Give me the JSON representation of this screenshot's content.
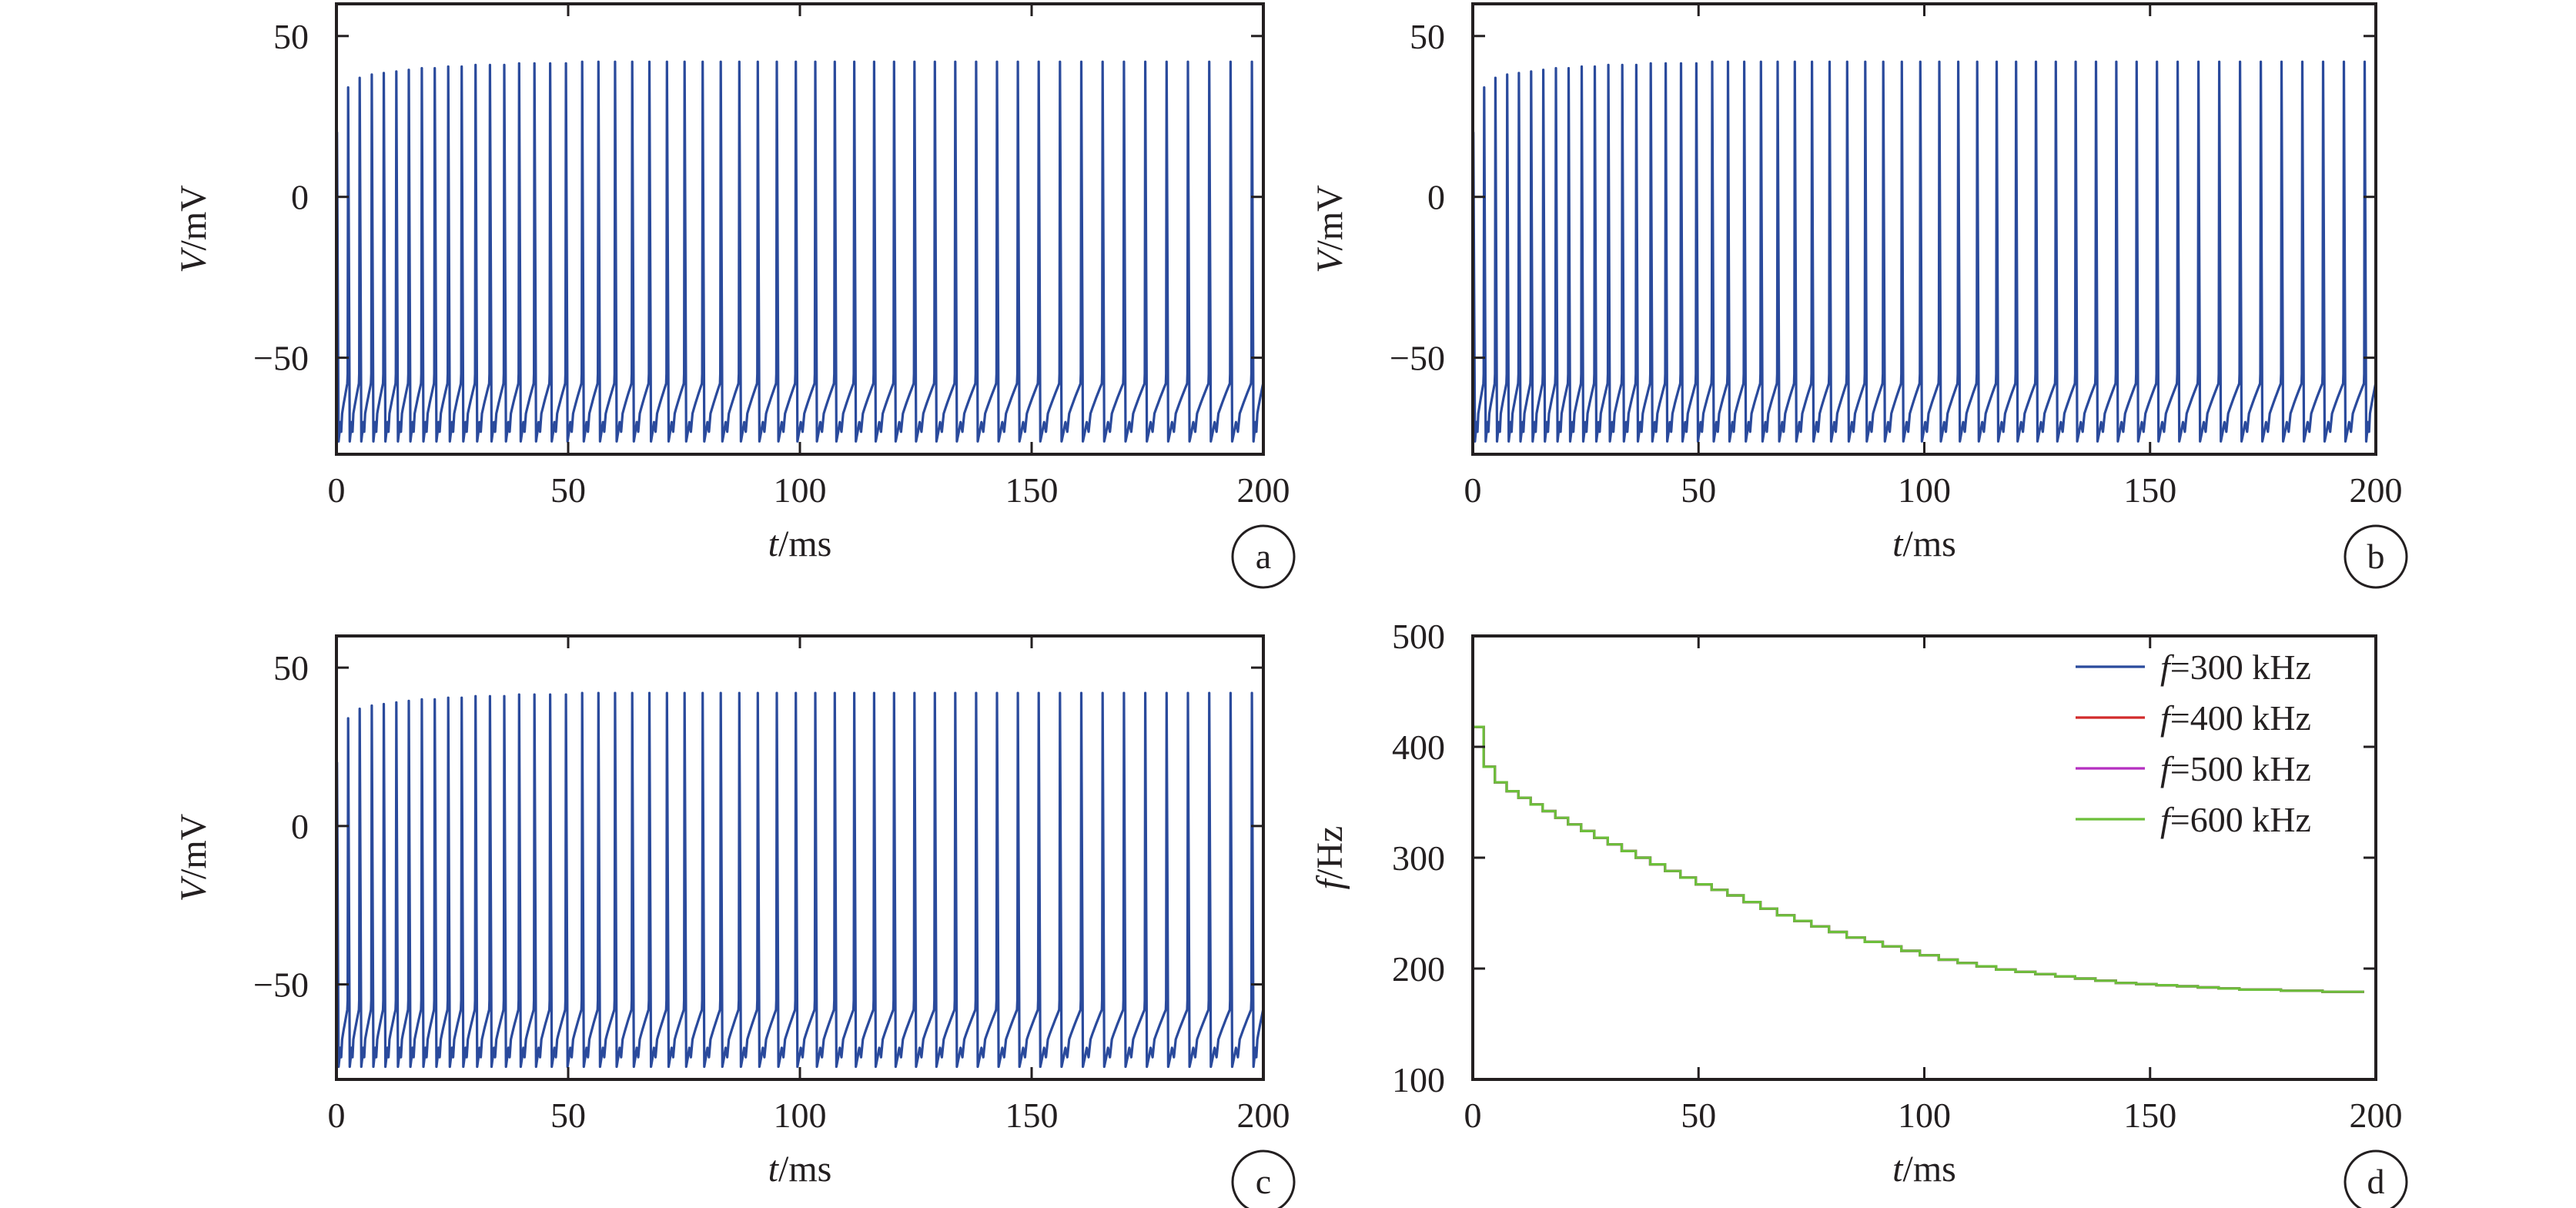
{
  "colors": {
    "axis": "#231f20",
    "trace": "#2a4a9c",
    "f300": "#2a4a9c",
    "f400": "#d22b2b",
    "f500": "#b52fc0",
    "f600": "#6cbf3a"
  },
  "chart_data": [
    {
      "panel": "a",
      "type": "line",
      "xlabel_italic": "t",
      "xlabel_unit": "/ms",
      "ylabel_italic": "V",
      "ylabel_unit": "/mV",
      "xlim": [
        0,
        200
      ],
      "ylim": [
        -80,
        60
      ],
      "xticks": [
        0,
        50,
        100,
        150,
        200
      ],
      "yticks": [
        -50,
        0,
        50
      ],
      "ytick_labels": [
        "−50",
        "0",
        "50"
      ],
      "grid": false,
      "trace": {
        "spike_times_ms": [
          0.0,
          2.4,
          4.9,
          7.5,
          10.1,
          12.8,
          15.5,
          18.3,
          21.1,
          24.0,
          26.9,
          29.9,
          33.0,
          36.1,
          39.3,
          42.6,
          46.0,
          49.4,
          52.9,
          56.4,
          60.0,
          63.7,
          67.4,
          71.2,
          75.0,
          78.9,
          82.8,
          86.8,
          90.8,
          94.9,
          99.0,
          103.2,
          107.4,
          111.6,
          115.9,
          120.2,
          124.6,
          129.0,
          133.4,
          137.9,
          142.4,
          146.9,
          151.4,
          156.0,
          160.6,
          165.2,
          169.8,
          174.4,
          179.0,
          183.6,
          188.2,
          192.8,
          197.4
        ],
        "peak_mV": [
          20,
          34,
          37,
          38,
          38.5,
          39,
          39.5,
          40,
          40,
          40.5,
          40.5,
          41,
          41,
          41,
          41.5,
          41.5,
          41.5,
          41.5,
          42,
          42,
          42,
          42,
          42,
          42,
          42,
          42,
          42,
          42,
          42,
          42,
          42,
          42,
          42,
          42,
          42,
          42,
          42,
          42,
          42,
          42,
          42,
          42,
          42,
          42,
          42,
          42,
          42,
          42,
          42,
          42,
          42,
          42,
          42
        ],
        "trough_mV": -76,
        "interspike_max_mV": -58
      }
    },
    {
      "panel": "b",
      "type": "line",
      "xlabel_italic": "t",
      "xlabel_unit": "/ms",
      "ylabel_italic": "V",
      "ylabel_unit": "/mV",
      "xlim": [
        0,
        200
      ],
      "ylim": [
        -80,
        60
      ],
      "xticks": [
        0,
        50,
        100,
        150,
        200
      ],
      "yticks": [
        -50,
        0,
        50
      ],
      "ytick_labels": [
        "−50",
        "0",
        "50"
      ],
      "grid": false,
      "trace": "same as panel a"
    },
    {
      "panel": "c",
      "type": "line",
      "xlabel_italic": "t",
      "xlabel_unit": "/ms",
      "ylabel_italic": "V",
      "ylabel_unit": "/mV",
      "xlim": [
        0,
        200
      ],
      "ylim": [
        -80,
        60
      ],
      "xticks": [
        0,
        50,
        100,
        150,
        200
      ],
      "yticks": [
        -50,
        0,
        50
      ],
      "ytick_labels": [
        "−50",
        "0",
        "50"
      ],
      "grid": false,
      "trace": "same as panel a"
    },
    {
      "panel": "d",
      "type": "line",
      "xlabel_italic": "t",
      "xlabel_unit": "/ms",
      "ylabel_italic": "f",
      "ylabel_unit": "/Hz",
      "xlim": [
        0,
        200
      ],
      "ylim": [
        100,
        500
      ],
      "xticks": [
        0,
        50,
        100,
        150,
        200
      ],
      "yticks": [
        100,
        200,
        300,
        400,
        500
      ],
      "ytick_labels": [
        "100",
        "200",
        "300",
        "400",
        "500"
      ],
      "grid": false,
      "legend_position": "top-right",
      "legend": [
        {
          "italic": "f",
          "text": "=300 kHz",
          "color_key": "f300"
        },
        {
          "italic": "f",
          "text": "=400 kHz",
          "color_key": "f400"
        },
        {
          "italic": "f",
          "text": "=500 kHz",
          "color_key": "f500"
        },
        {
          "italic": "f",
          "text": "=600 kHz",
          "color_key": "f600"
        }
      ],
      "step_series": {
        "x": [
          0,
          2.4,
          4.9,
          7.5,
          10.1,
          12.8,
          15.5,
          18.3,
          21.1,
          24.0,
          26.9,
          29.9,
          33.0,
          36.1,
          39.3,
          42.6,
          46.0,
          49.4,
          52.9,
          56.4,
          60.0,
          63.7,
          67.4,
          71.2,
          75.0,
          78.9,
          82.8,
          86.8,
          90.8,
          94.9,
          99.0,
          103.2,
          107.4,
          111.6,
          115.9,
          120.2,
          124.6,
          129.0,
          133.4,
          137.9,
          142.4,
          146.9,
          151.4,
          156.0,
          160.6,
          165.2,
          169.8,
          174.4,
          179.0,
          183.6,
          188.2,
          192.8,
          197.4
        ],
        "y": [
          418,
          382,
          368,
          360,
          354,
          348,
          342,
          336,
          330,
          324,
          318,
          312,
          306,
          300,
          294,
          288,
          282,
          276,
          271,
          266,
          260,
          254,
          248,
          243,
          238,
          233,
          228,
          224,
          220,
          216,
          212,
          208,
          205,
          202,
          199,
          197,
          195,
          193,
          191,
          189,
          187,
          186,
          185,
          184,
          183,
          182,
          181,
          181,
          180,
          180,
          179,
          179,
          179
        ]
      }
    }
  ]
}
